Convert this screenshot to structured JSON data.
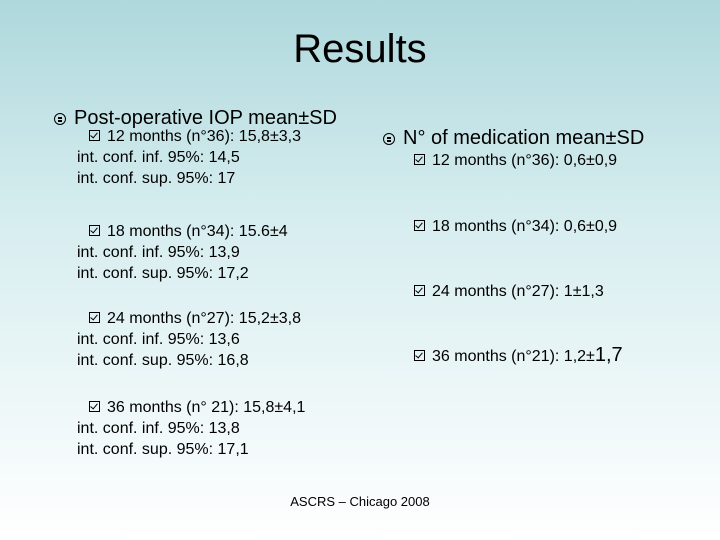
{
  "title": "Results",
  "left": {
    "heading": "Post-operative IOP mean±SD",
    "groups": [
      {
        "label": "12 months (n°36): 15,8±3,3",
        "inf": "int. conf. inf. 95%: 14,5",
        "sup": "int. conf. sup. 95%: 17"
      },
      {
        "label": "18 months (n°34): 15.6±4",
        "inf": "int. conf. inf. 95%: 13,9",
        "sup": "int. conf. sup. 95%: 17,2"
      },
      {
        "label": "24 months (n°27): 15,2±3,8",
        "inf": "int. conf. inf. 95%: 13,6",
        "sup": "int. conf. sup. 95%: 16,8"
      },
      {
        "label": "36 months (n° 21): 15,8±4,1",
        "inf": "int. conf. inf. 95%: 13,8",
        "sup": "int. conf. sup. 95%: 17,1"
      }
    ]
  },
  "right": {
    "heading": "N° of medication mean±SD",
    "items": [
      "12 months (n°36): 0,6±0,9",
      "18 months (n°34): 0,6±0,9",
      "24 months (n°27): 1±1,3"
    ],
    "last_item_main": "36 months (n°21): 1,2±",
    "last_item_big": "1,7"
  },
  "footer": "ASCRS – Chicago 2008"
}
